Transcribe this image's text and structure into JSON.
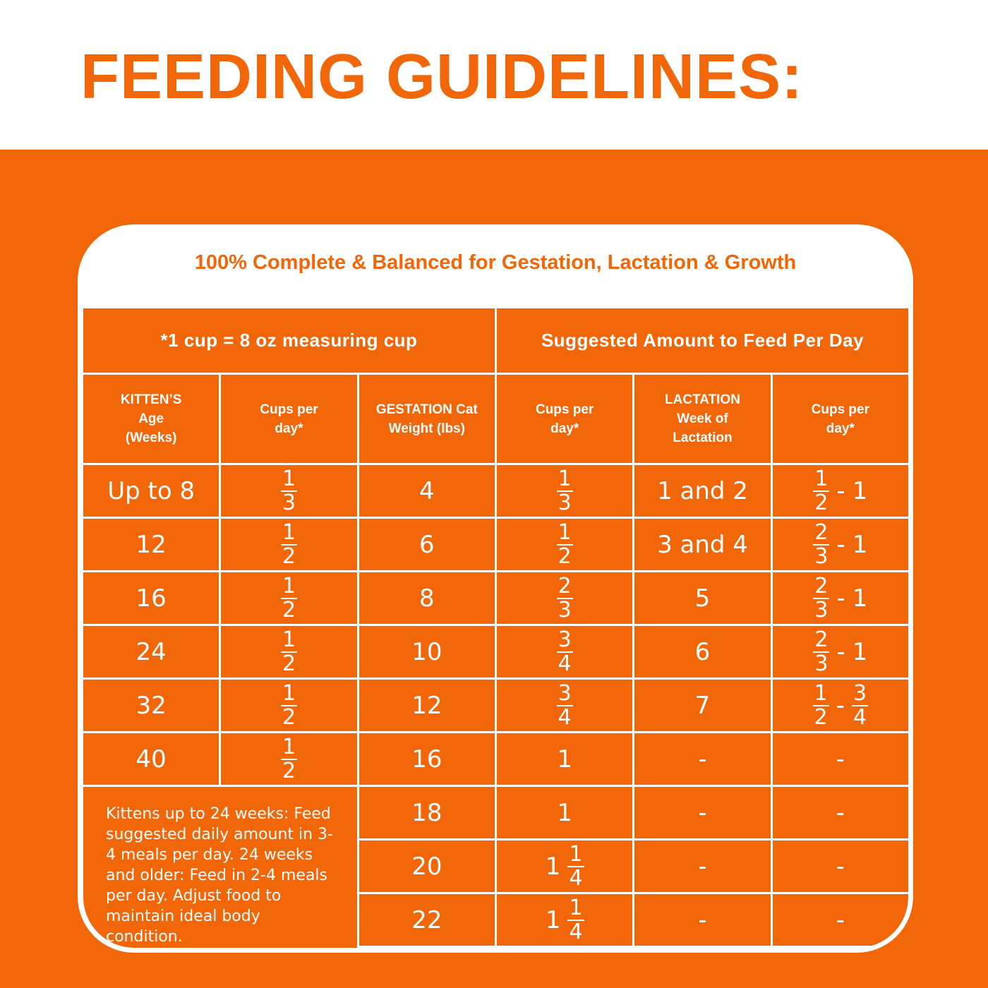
{
  "title": "FEEDING GUIDELINES:",
  "card": {
    "subtitle": "100% Complete & Balanced for Gestation, Lactation & Growth",
    "table": {
      "note_header": "*1 cup = 8 oz measuring cup",
      "amount_header": "Suggested Amount to Feed Per Day",
      "columns": [
        "KITTEN’S\nAge\n(Weeks)",
        "Cups per\nday*",
        "GESTATION Cat\nWeight (lbs)",
        "Cups per\nday*",
        "LACTATION\nWeek of\nLactation",
        "Cups per\nday*"
      ],
      "rows": [
        [
          "Up to 8",
          [
            {
              "num": "1",
              "den": "3"
            }
          ],
          "4",
          [
            {
              "num": "1",
              "den": "3"
            }
          ],
          "1 and 2",
          [
            {
              "num": "1",
              "den": "2"
            },
            "-",
            "1"
          ]
        ],
        [
          "12",
          [
            {
              "num": "1",
              "den": "2"
            }
          ],
          "6",
          [
            {
              "num": "1",
              "den": "2"
            }
          ],
          "3 and 4",
          [
            {
              "num": "2",
              "den": "3"
            },
            "-",
            "1"
          ]
        ],
        [
          "16",
          [
            {
              "num": "1",
              "den": "2"
            }
          ],
          "8",
          [
            {
              "num": "2",
              "den": "3"
            }
          ],
          "5",
          [
            {
              "num": "2",
              "den": "3"
            },
            "-",
            "1"
          ]
        ],
        [
          "24",
          [
            {
              "num": "1",
              "den": "2"
            }
          ],
          "10",
          [
            {
              "num": "3",
              "den": "4"
            }
          ],
          "6",
          [
            {
              "num": "2",
              "den": "3"
            },
            "-",
            "1"
          ]
        ],
        [
          "32",
          [
            {
              "num": "1",
              "den": "2"
            }
          ],
          "12",
          [
            {
              "num": "3",
              "den": "4"
            }
          ],
          "7",
          [
            {
              "num": "1",
              "den": "2"
            },
            "-",
            {
              "num": "3",
              "den": "4"
            }
          ]
        ],
        [
          "40",
          [
            {
              "num": "1",
              "den": "2"
            }
          ],
          "16",
          "1",
          "-",
          "-"
        ],
        [
          "18",
          "1",
          "-",
          "-"
        ],
        [
          "20",
          [
            "1",
            {
              "num": "1",
              "den": "4"
            }
          ],
          "-",
          "-"
        ],
        [
          "22",
          [
            "1",
            {
              "num": "1",
              "den": "4"
            }
          ],
          "-",
          "-"
        ]
      ],
      "footnote": "Kittens up to 24 weeks: Feed suggested daily amount in 3-4 meals per day. 24 weeks and older: Feed in 2-4 meals per day. Adjust food to maintain ideal body condition."
    }
  }
}
